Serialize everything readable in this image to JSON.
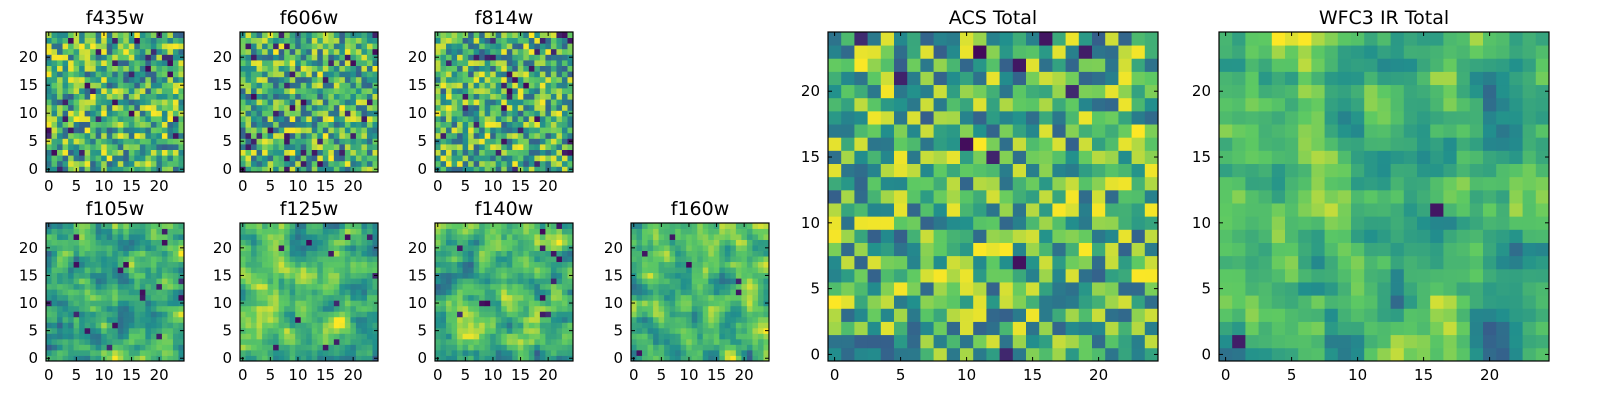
{
  "figure": {
    "colormap": "viridis",
    "colors": [
      "#440154",
      "#3b528b",
      "#21908d",
      "#5dc963",
      "#fde725"
    ]
  },
  "chart_data": [
    {
      "type": "heatmap",
      "title": "f435w",
      "grid_size": 25,
      "xlim": [
        0,
        24
      ],
      "ylim": [
        0,
        24
      ],
      "xticks": [
        "0",
        "5",
        "10",
        "15",
        "20"
      ],
      "yticks": [
        "0",
        "5",
        "10",
        "15",
        "20"
      ],
      "seed": 11,
      "smooth": 0,
      "dark_fraction": 0.05
    },
    {
      "type": "heatmap",
      "title": "f606w",
      "grid_size": 25,
      "xlim": [
        0,
        24
      ],
      "ylim": [
        0,
        24
      ],
      "xticks": [
        "0",
        "5",
        "10",
        "15",
        "20"
      ],
      "yticks": [
        "0",
        "5",
        "10",
        "15",
        "20"
      ],
      "seed": 23,
      "smooth": 0,
      "dark_fraction": 0.05
    },
    {
      "type": "heatmap",
      "title": "f814w",
      "grid_size": 25,
      "xlim": [
        0,
        24
      ],
      "ylim": [
        0,
        24
      ],
      "xticks": [
        "0",
        "5",
        "10",
        "15",
        "20"
      ],
      "yticks": [
        "0",
        "5",
        "10",
        "15",
        "20"
      ],
      "seed": 37,
      "smooth": 0,
      "dark_fraction": 0.05
    },
    {
      "type": "heatmap",
      "title": "f105w",
      "grid_size": 25,
      "xlim": [
        0,
        24
      ],
      "ylim": [
        0,
        24
      ],
      "xticks": [
        "0",
        "5",
        "10",
        "15",
        "20"
      ],
      "yticks": [
        "0",
        "5",
        "10",
        "15",
        "20"
      ],
      "seed": 41,
      "smooth": 1,
      "dark_fraction": 0.02
    },
    {
      "type": "heatmap",
      "title": "f125w",
      "grid_size": 25,
      "xlim": [
        0,
        24
      ],
      "ylim": [
        0,
        24
      ],
      "xticks": [
        "0",
        "5",
        "10",
        "15",
        "20"
      ],
      "yticks": [
        "0",
        "5",
        "10",
        "15",
        "20"
      ],
      "seed": 53,
      "smooth": 1,
      "dark_fraction": 0.02
    },
    {
      "type": "heatmap",
      "title": "f140w",
      "grid_size": 25,
      "xlim": [
        0,
        24
      ],
      "ylim": [
        0,
        24
      ],
      "xticks": [
        "0",
        "5",
        "10",
        "15",
        "20"
      ],
      "yticks": [
        "0",
        "5",
        "10",
        "15",
        "20"
      ],
      "seed": 67,
      "smooth": 1,
      "dark_fraction": 0.02
    },
    {
      "type": "heatmap",
      "title": "f160w",
      "grid_size": 25,
      "xlim": [
        0,
        24
      ],
      "ylim": [
        0,
        24
      ],
      "xticks": [
        "0",
        "5",
        "10",
        "15",
        "20"
      ],
      "yticks": [
        "0",
        "5",
        "10",
        "15",
        "20"
      ],
      "seed": 79,
      "smooth": 1,
      "dark_fraction": 0.02
    },
    {
      "type": "heatmap",
      "title": "ACS Total",
      "grid_size": 25,
      "xlim": [
        0,
        24
      ],
      "ylim": [
        0,
        24
      ],
      "xticks": [
        "0",
        "5",
        "10",
        "15",
        "20"
      ],
      "yticks": [
        "0",
        "5",
        "10",
        "15",
        "20"
      ],
      "seed": 97,
      "smooth": 0,
      "dark_fraction": 0.02
    },
    {
      "type": "heatmap",
      "title": "WFC3 IR Total",
      "grid_size": 25,
      "xlim": [
        0,
        24
      ],
      "ylim": [
        0,
        24
      ],
      "xticks": [
        "0",
        "5",
        "10",
        "15",
        "20"
      ],
      "yticks": [
        "0",
        "5",
        "10",
        "15",
        "20"
      ],
      "seed": 131,
      "smooth": 1,
      "dark_fraction": 0.01
    }
  ]
}
